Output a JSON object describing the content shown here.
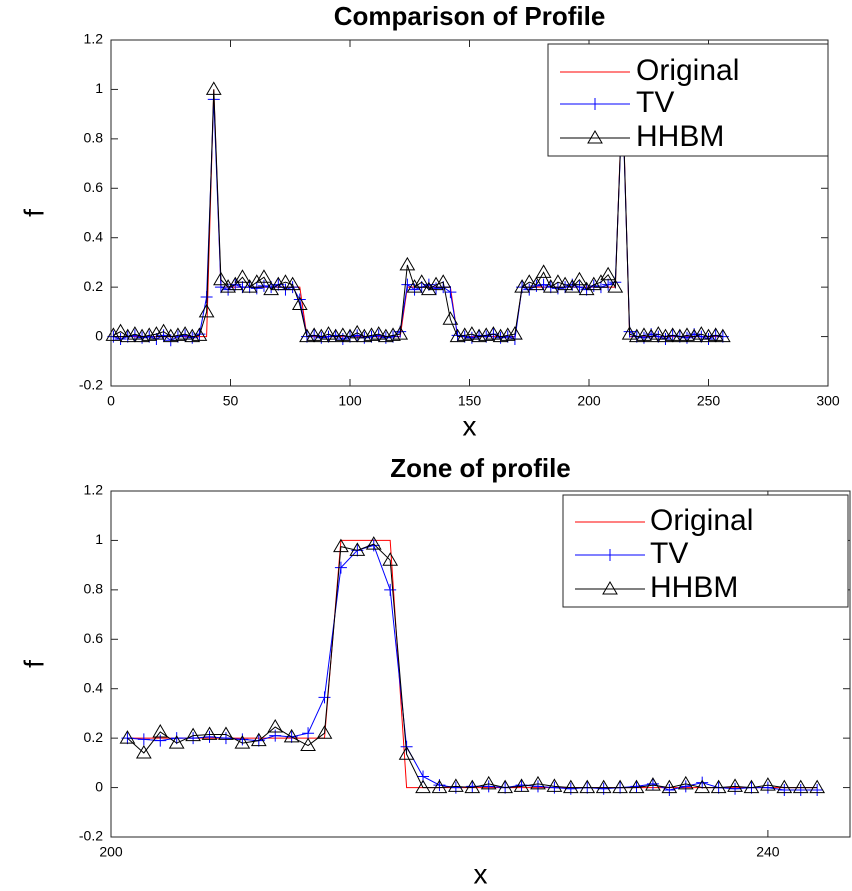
{
  "chart_data": [
    {
      "type": "line",
      "title": "Comparison of Profile",
      "x_label": "x",
      "y_label": "f",
      "x": [
        1,
        4,
        7,
        10,
        13,
        16,
        19,
        22,
        25,
        28,
        31,
        34,
        37,
        40,
        43,
        46,
        49,
        52,
        55,
        58,
        61,
        64,
        67,
        70,
        73,
        76,
        79,
        82,
        85,
        88,
        91,
        94,
        97,
        100,
        103,
        106,
        109,
        112,
        115,
        118,
        121,
        124,
        127,
        130,
        133,
        136,
        139,
        142,
        145,
        148,
        151,
        154,
        157,
        160,
        163,
        166,
        169,
        172,
        175,
        178,
        181,
        184,
        187,
        190,
        193,
        196,
        199,
        202,
        205,
        208,
        211,
        214,
        217,
        220,
        223,
        226,
        229,
        232,
        235,
        238,
        241,
        244,
        247,
        250,
        253,
        256
      ],
      "series": [
        {
          "name": "Original",
          "color": "#ff0000",
          "marker": "none",
          "values": [
            0,
            0,
            0,
            0,
            0,
            0,
            0,
            0,
            0,
            0,
            0,
            0,
            0,
            0,
            1,
            0.2,
            0.2,
            0.2,
            0.2,
            0.2,
            0.2,
            0.2,
            0.2,
            0.2,
            0.2,
            0.2,
            0.2,
            0,
            0,
            0,
            0,
            0,
            0,
            0,
            0,
            0,
            0,
            0,
            0,
            0,
            0,
            0.2,
            0.2,
            0.2,
            0.2,
            0.2,
            0.2,
            0.2,
            0,
            0,
            0,
            0,
            0,
            0,
            0,
            0,
            0,
            0.2,
            0.2,
            0.2,
            0.2,
            0.2,
            0.2,
            0.2,
            0.2,
            0.2,
            0.2,
            0.2,
            0.2,
            0.2,
            0.2,
            1,
            0,
            0,
            0,
            0,
            0,
            0,
            0,
            0,
            0,
            0,
            0,
            0,
            0,
            0
          ]
        },
        {
          "name": "TV",
          "color": "#0000ff",
          "marker": "plus",
          "values": [
            0,
            -0.01,
            0,
            0.005,
            -0.005,
            0,
            -0.01,
            0.005,
            -0.015,
            0,
            0.005,
            -0.005,
            0.01,
            0.16,
            0.96,
            0.2,
            0.19,
            0.21,
            0.2,
            0.2,
            0.195,
            0.205,
            0.2,
            0.21,
            0.19,
            0.2,
            0.15,
            0,
            0.005,
            -0.005,
            0,
            0.005,
            -0.01,
            0,
            0.005,
            -0.005,
            0,
            0.005,
            -0.005,
            0,
            0.02,
            0.21,
            0.19,
            0.2,
            0.21,
            0.195,
            0.2,
            0.18,
            0.005,
            0,
            -0.005,
            0.005,
            0,
            0.01,
            -0.005,
            0,
            -0.01,
            0.2,
            0.19,
            0.205,
            0.21,
            0.2,
            0.195,
            0.2,
            0.21,
            0.2,
            0.19,
            0.205,
            0.2,
            0.21,
            0.22,
            0.96,
            0.02,
            0,
            -0.005,
            0.01,
            0,
            -0.01,
            0.005,
            0,
            -0.005,
            0.01,
            0,
            -0.01,
            0.005,
            0
          ]
        },
        {
          "name": "HHBM",
          "color": "#000000",
          "marker": "triangle",
          "values": [
            0.005,
            0.02,
            0,
            0.01,
            0,
            0.005,
            0.01,
            0.02,
            0,
            0.005,
            0.01,
            0,
            0.005,
            0.1,
            1.0,
            0.23,
            0.2,
            0.21,
            0.24,
            0.2,
            0.22,
            0.24,
            0.19,
            0.21,
            0.22,
            0.21,
            0.13,
            0,
            0.005,
            0,
            0.01,
            0,
            0.005,
            0,
            0.015,
            0,
            0.005,
            0.01,
            0,
            0.005,
            0.01,
            0.29,
            0.2,
            0.22,
            0.19,
            0.21,
            0.22,
            0.07,
            0,
            0.005,
            0.01,
            0,
            0.005,
            0.01,
            0,
            0.005,
            0.01,
            0.2,
            0.22,
            0.21,
            0.26,
            0.2,
            0.22,
            0.21,
            0.2,
            0.23,
            0.19,
            0.21,
            0.22,
            0.25,
            0.2,
            0.985,
            0.01,
            0,
            0.005,
            0,
            0.01,
            0,
            0.005,
            0,
            0.005,
            0,
            0.01,
            0,
            0.005,
            0
          ]
        }
      ],
      "xlim": [
        0,
        300
      ],
      "xticks": [
        0,
        50,
        100,
        150,
        200,
        250,
        300
      ],
      "ylim": [
        -0.2,
        1.2
      ],
      "yticks": [
        -0.2,
        0,
        0.2,
        0.4,
        0.6,
        0.8,
        1,
        1.2
      ],
      "grid": false,
      "legend": "top-right"
    },
    {
      "type": "line",
      "title": "Zone of profile",
      "x_label": "x",
      "y_label": "f",
      "x": [
        201,
        202,
        203,
        204,
        205,
        206,
        207,
        208,
        209,
        210,
        211,
        212,
        213,
        214,
        215,
        216,
        217,
        218,
        219,
        220,
        221,
        222,
        223,
        224,
        225,
        226,
        227,
        228,
        229,
        230,
        231,
        232,
        233,
        234,
        235,
        236,
        237,
        238,
        239,
        240,
        241,
        242,
        243
      ],
      "series": [
        {
          "name": "Original",
          "color": "#ff0000",
          "marker": "none",
          "values": [
            0.2,
            0.2,
            0.2,
            0.2,
            0.2,
            0.2,
            0.2,
            0.2,
            0.2,
            0.2,
            0.2,
            0.2,
            0.2,
            1,
            1,
            1,
            1,
            0,
            0,
            0,
            0,
            0,
            0,
            0,
            0,
            0,
            0,
            0,
            0,
            0,
            0,
            0,
            0,
            0,
            0,
            0,
            0,
            0,
            0,
            0,
            0,
            0,
            0
          ]
        },
        {
          "name": "TV",
          "color": "#0000ff",
          "marker": "plus",
          "values": [
            0.2,
            0.195,
            0.19,
            0.2,
            0.2,
            0.205,
            0.2,
            0.195,
            0.19,
            0.21,
            0.205,
            0.22,
            0.365,
            0.89,
            0.96,
            0.98,
            0.8,
            0.165,
            0.045,
            0.01,
            0,
            0.005,
            0.005,
            0,
            0.01,
            0.005,
            0,
            -0.005,
            0,
            -0.005,
            0,
            0.005,
            0.015,
            -0.01,
            0.005,
            0.02,
            0,
            -0.005,
            0,
            0,
            -0.01,
            -0.01,
            -0.01
          ]
        },
        {
          "name": "HHBM",
          "color": "#000000",
          "marker": "triangle",
          "values": [
            0.2,
            0.14,
            0.225,
            0.18,
            0.21,
            0.215,
            0.215,
            0.18,
            0.19,
            0.245,
            0.205,
            0.17,
            0.22,
            0.975,
            0.96,
            0.985,
            0.92,
            0.135,
            0,
            0,
            0.005,
            0,
            0.015,
            0,
            0.005,
            0.015,
            0.005,
            0,
            0,
            0,
            0,
            0,
            0.01,
            0,
            0.015,
            0,
            0,
            0.005,
            0,
            0.01,
            0,
            0,
            0
          ]
        }
      ],
      "xlim": [
        200,
        245
      ],
      "xticks": [
        200,
        240
      ],
      "ylim": [
        -0.2,
        1.2
      ],
      "yticks": [
        -0.2,
        0,
        0.2,
        0.4,
        0.6,
        0.8,
        1,
        1.2
      ],
      "grid": false,
      "legend": "top-right"
    }
  ]
}
